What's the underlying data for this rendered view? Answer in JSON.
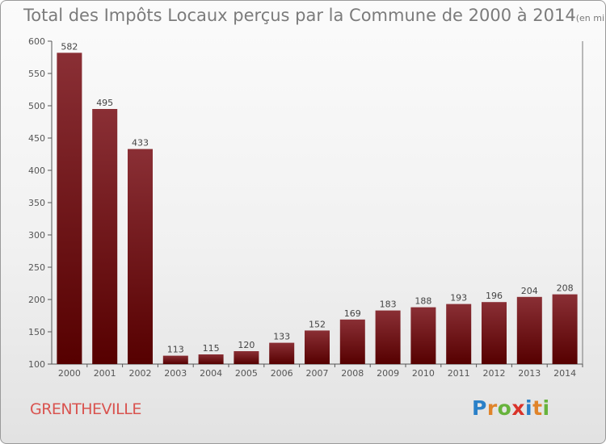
{
  "header": {
    "title": "Total des Impôts Locaux perçus par la Commune de 2000 à 2014",
    "unit": "(en milliers d'€)"
  },
  "footer": {
    "commune": "GRENTHEVILLE",
    "logo": [
      "P",
      "r",
      "o",
      "x",
      "i",
      "t",
      "i"
    ],
    "logo_colors": [
      "#2a80c8",
      "#e0842a",
      "#67b33c",
      "#d9332a",
      "#2a80c8",
      "#e0842a",
      "#67b33c"
    ]
  },
  "chart_data": {
    "type": "bar",
    "title": "Total des Impôts Locaux perçus par la Commune de 2000 à 2014",
    "xlabel": "",
    "ylabel": "",
    "categories": [
      "2000",
      "2001",
      "2002",
      "2003",
      "2004",
      "2005",
      "2006",
      "2007",
      "2008",
      "2009",
      "2010",
      "2011",
      "2012",
      "2013",
      "2014"
    ],
    "values": [
      582,
      495,
      433,
      113,
      115,
      120,
      133,
      152,
      169,
      183,
      188,
      193,
      196,
      204,
      208
    ],
    "ylim": [
      100,
      600
    ],
    "yticks": [
      100,
      150,
      200,
      250,
      300,
      350,
      400,
      450,
      500,
      550,
      600
    ],
    "grid": false,
    "bar_color_top": "#8a2f35",
    "bar_color_bottom": "#560000"
  }
}
